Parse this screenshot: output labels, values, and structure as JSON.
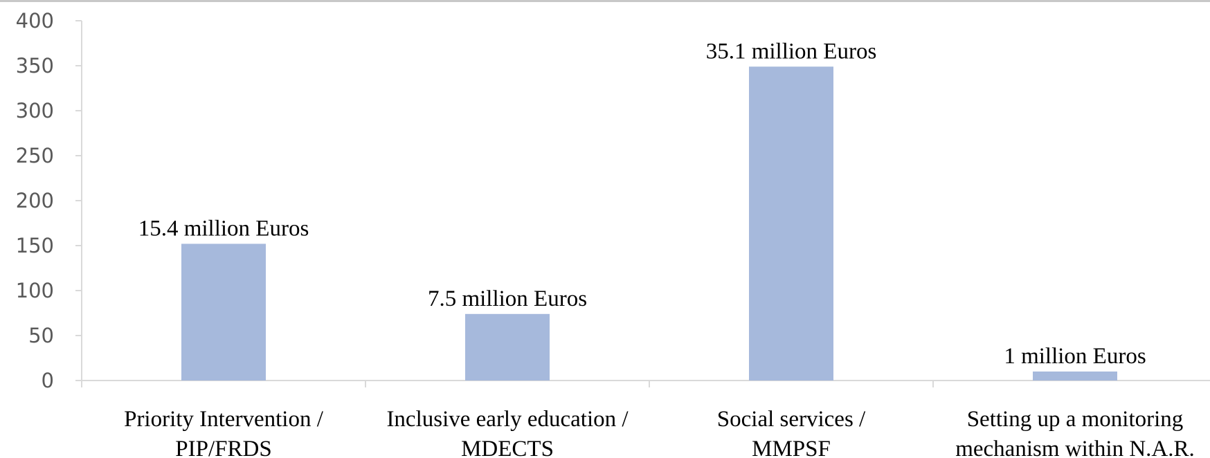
{
  "chart_data": {
    "type": "bar",
    "categories": [
      [
        "Priority Intervention /",
        "PIP/FRDS"
      ],
      [
        "Inclusive early education  /",
        "MDECTS"
      ],
      [
        "Social services      /",
        "MMPSF"
      ],
      [
        "Setting up a monitoring",
        "mechanism within N.A.R."
      ]
    ],
    "values": [
      152,
      74,
      349,
      10
    ],
    "data_labels": [
      "15.4 million Euros",
      "7.5 million Euros",
      "35.1 million Euros",
      "1 million Euros"
    ],
    "yticks": [
      "0",
      "50",
      "100",
      "150",
      "200",
      "250",
      "300",
      "350",
      "400"
    ],
    "ylim": [
      0,
      400
    ],
    "bar_color": "#a6b9dc",
    "axis_color": "#d9d9d9",
    "grid": false,
    "legend": false
  }
}
